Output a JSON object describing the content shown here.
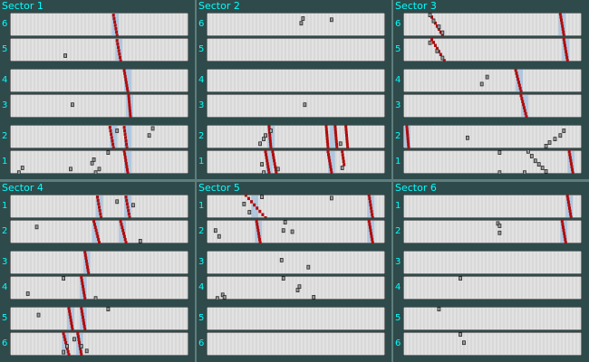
{
  "window": {
    "title": ""
  },
  "colors": {
    "background": "#2f4a4a",
    "label_text": "#00ffff",
    "layer_fill": "#e2e2e2",
    "wire_grid": "#c4c4c4",
    "track_hit": "#b00c0c",
    "road_highlight": "#8ab4de",
    "noise_hit_edge": "#2a2a2a",
    "noise_hit_fill": "#9a9a9a"
  },
  "sectors": [
    {
      "title": "Sector 1",
      "layers": [
        {
          "label": "6",
          "red": [
            [
              0.58,
              0.1,
              0.6,
              0.96
            ]
          ],
          "blue": [
            0.59
          ],
          "black": []
        },
        {
          "label": "5",
          "red": [
            [
              0.6,
              0.1,
              0.62,
              0.96
            ]
          ],
          "blue": [
            0.61
          ],
          "black": [
            [
              0.31,
              0.75
            ]
          ]
        },
        {
          "label": "4",
          "red": [
            [
              0.64,
              0.06,
              0.66,
              0.96
            ]
          ],
          "blue": [
            0.66
          ],
          "black": []
        },
        {
          "label": "3",
          "red": [
            [
              0.665,
              0.06,
              0.675,
              0.96
            ]
          ],
          "blue": [
            0.67
          ],
          "black": [
            [
              0.35,
              0.45
            ]
          ]
        },
        {
          "label": "2",
          "red": [
            [
              0.56,
              0.1,
              0.58,
              0.96
            ],
            [
              0.64,
              0.1,
              0.655,
              0.96
            ]
          ],
          "blue": [
            0.58,
            0.66
          ],
          "black": [
            [
              0.8,
              0.15
            ],
            [
              0.78,
              0.45
            ],
            [
              0.6,
              0.25
            ]
          ]
        },
        {
          "label": "1",
          "red": [
            [
              0.64,
              0.02,
              0.66,
              0.96
            ]
          ],
          "blue": [
            0.66
          ],
          "black": [
            [
              0.07,
              0.75
            ],
            [
              0.05,
              0.95
            ],
            [
              0.47,
              0.4
            ],
            [
              0.46,
              0.55
            ],
            [
              0.5,
              0.8
            ],
            [
              0.48,
              0.95
            ],
            [
              0.55,
              0.1
            ],
            [
              0.34,
              0.8
            ]
          ]
        }
      ]
    },
    {
      "title": "Sector 2",
      "layers": [
        {
          "label": "6",
          "red": [],
          "blue": [],
          "black": [
            [
              0.54,
              0.25
            ],
            [
              0.53,
              0.45
            ],
            [
              0.7,
              0.3
            ]
          ]
        },
        {
          "label": "5",
          "red": [],
          "blue": [],
          "black": []
        },
        {
          "label": "4",
          "red": [],
          "blue": [],
          "black": []
        },
        {
          "label": "3",
          "red": [],
          "blue": [],
          "black": [
            [
              0.55,
              0.45
            ]
          ]
        },
        {
          "label": "2",
          "red": [
            [
              0.35,
              0.05,
              0.36,
              0.95
            ],
            [
              0.67,
              0.05,
              0.68,
              0.95
            ],
            [
              0.72,
              0.05,
              0.73,
              0.95
            ],
            [
              0.78,
              0.05,
              0.79,
              0.95
            ]
          ],
          "blue": [
            0.36,
            0.71
          ],
          "black": [
            [
              0.3,
              0.8
            ],
            [
              0.32,
              0.6
            ],
            [
              0.33,
              0.45
            ],
            [
              0.36,
              0.25
            ],
            [
              0.75,
              0.8
            ]
          ]
        },
        {
          "label": "1",
          "red": [
            [
              0.33,
              0.05,
              0.35,
              0.95
            ],
            [
              0.37,
              0.05,
              0.39,
              0.95
            ],
            [
              0.68,
              0.05,
              0.7,
              0.95
            ],
            [
              0.76,
              0.05,
              0.77,
              0.6
            ]
          ],
          "blue": [
            0.35,
            0.7
          ],
          "black": [
            [
              0.31,
              0.6
            ],
            [
              0.32,
              0.95
            ],
            [
              0.4,
              0.8
            ],
            [
              0.76,
              0.75
            ]
          ]
        }
      ]
    },
    {
      "title": "Sector 3",
      "layers": [
        {
          "label": "6",
          "red": [
            [
              0.15,
              0.05,
              0.22,
              0.95
            ],
            [
              0.88,
              0.05,
              0.9,
              0.95
            ]
          ],
          "blue": [
            0.89
          ],
          "black": [
            [
              0.15,
              0.1
            ],
            [
              0.17,
              0.35
            ],
            [
              0.2,
              0.6
            ],
            [
              0.22,
              0.85
            ]
          ]
        },
        {
          "label": "5",
          "red": [
            [
              0.16,
              0.05,
              0.23,
              0.95
            ],
            [
              0.9,
              0.05,
              0.92,
              0.95
            ]
          ],
          "blue": [
            0.91
          ],
          "black": [
            [
              0.15,
              0.2
            ],
            [
              0.19,
              0.55
            ],
            [
              0.22,
              0.85
            ]
          ]
        },
        {
          "label": "4",
          "red": [
            [
              0.63,
              0.05,
              0.66,
              0.95
            ]
          ],
          "blue": [
            0.65
          ],
          "black": [
            [
              0.47,
              0.35
            ],
            [
              0.44,
              0.65
            ]
          ]
        },
        {
          "label": "3",
          "red": [
            [
              0.66,
              0.05,
              0.69,
              0.95
            ]
          ],
          "blue": [
            0.68
          ],
          "black": []
        },
        {
          "label": "2",
          "red": [
            [
              0.02,
              0.05,
              0.03,
              0.95
            ]
          ],
          "blue": [
            0.02
          ],
          "black": [
            [
              0.9,
              0.25
            ],
            [
              0.88,
              0.45
            ],
            [
              0.85,
              0.6
            ],
            [
              0.82,
              0.75
            ],
            [
              0.8,
              0.9
            ],
            [
              0.36,
              0.55
            ]
          ]
        },
        {
          "label": "1",
          "red": [
            [
              0.93,
              0.05,
              0.95,
              0.95
            ]
          ],
          "blue": [
            0.94
          ],
          "black": [
            [
              0.7,
              0.05
            ],
            [
              0.72,
              0.25
            ],
            [
              0.74,
              0.45
            ],
            [
              0.76,
              0.6
            ],
            [
              0.78,
              0.75
            ],
            [
              0.8,
              0.9
            ],
            [
              0.68,
              0.95
            ],
            [
              0.54,
              0.95
            ],
            [
              0.54,
              0.1
            ]
          ]
        }
      ]
    },
    {
      "title": "Sector 4",
      "layers": [
        {
          "label": "1",
          "red": [
            [
              0.49,
              0.1,
              0.51,
              0.96
            ],
            [
              0.65,
              0.1,
              0.67,
              0.96
            ]
          ],
          "blue": [
            0.5,
            0.66
          ],
          "black": [
            [
              0.6,
              0.3
            ],
            [
              0.69,
              0.45
            ]
          ]
        },
        {
          "label": "2",
          "red": [
            [
              0.47,
              0.05,
              0.5,
              0.95
            ],
            [
              0.62,
              0.05,
              0.65,
              0.95
            ]
          ],
          "blue": [
            0.48,
            0.63
          ],
          "black": [
            [
              0.15,
              0.3
            ],
            [
              0.73,
              0.9
            ]
          ]
        },
        {
          "label": "3",
          "red": [
            [
              0.42,
              0.05,
              0.44,
              0.95
            ]
          ],
          "blue": [
            0.43
          ],
          "black": []
        },
        {
          "label": "4",
          "red": [
            [
              0.4,
              0.05,
              0.42,
              0.95
            ]
          ],
          "blue": [
            0.41
          ],
          "black": [
            [
              0.3,
              0.1
            ],
            [
              0.1,
              0.75
            ],
            [
              0.48,
              0.95
            ]
          ]
        },
        {
          "label": "5",
          "red": [
            [
              0.33,
              0.05,
              0.35,
              0.95
            ],
            [
              0.4,
              0.05,
              0.42,
              0.95
            ]
          ],
          "blue": [
            0.34,
            0.41
          ],
          "black": [
            [
              0.55,
              0.1
            ],
            [
              0.16,
              0.35
            ]
          ]
        },
        {
          "label": "6",
          "red": [
            [
              0.3,
              0.05,
              0.33,
              0.95
            ],
            [
              0.38,
              0.05,
              0.4,
              0.95
            ]
          ],
          "blue": [
            0.31,
            0.39
          ],
          "black": [
            [
              0.36,
              0.3
            ],
            [
              0.32,
              0.6
            ],
            [
              0.4,
              0.6
            ],
            [
              0.43,
              0.8
            ],
            [
              0.3,
              0.85
            ]
          ]
        }
      ]
    },
    {
      "title": "Sector 5",
      "layers": [
        {
          "label": "1",
          "red": [
            [
              0.22,
              0.02,
              0.33,
              0.98
            ],
            [
              0.91,
              0.02,
              0.93,
              0.98
            ]
          ],
          "blue": [
            0.27,
            0.92
          ],
          "black": [
            [
              0.21,
              0.4
            ],
            [
              0.24,
              0.75
            ],
            [
              0.31,
              0.1
            ],
            [
              0.7,
              0.15
            ]
          ]
        },
        {
          "label": "2",
          "red": [
            [
              0.28,
              0.05,
              0.3,
              0.95
            ],
            [
              0.91,
              0.05,
              0.93,
              0.95
            ]
          ],
          "blue": [
            0.29,
            0.92
          ],
          "black": [
            [
              0.44,
              0.1
            ],
            [
              0.43,
              0.45
            ],
            [
              0.48,
              0.5
            ],
            [
              0.05,
              0.45
            ],
            [
              0.07,
              0.7
            ]
          ]
        },
        {
          "label": "3",
          "red": [],
          "blue": [],
          "black": [
            [
              0.42,
              0.4
            ],
            [
              0.57,
              0.7
            ]
          ]
        },
        {
          "label": "4",
          "red": [],
          "blue": [],
          "black": [
            [
              0.43,
              0.1
            ],
            [
              0.52,
              0.45
            ],
            [
              0.51,
              0.6
            ],
            [
              0.09,
              0.8
            ],
            [
              0.1,
              0.9
            ],
            [
              0.06,
              0.95
            ],
            [
              0.6,
              0.9
            ]
          ]
        },
        {
          "label": "5",
          "red": [],
          "blue": [],
          "black": []
        },
        {
          "label": "6",
          "red": [],
          "blue": [],
          "black": []
        }
      ]
    },
    {
      "title": "Sector 6",
      "layers": [
        {
          "label": "1",
          "red": [
            [
              0.92,
              0.05,
              0.94,
              0.95
            ]
          ],
          "blue": [
            0.93
          ],
          "black": []
        },
        {
          "label": "2",
          "red": [
            [
              0.89,
              0.05,
              0.91,
              0.95
            ]
          ],
          "blue": [
            0.9
          ],
          "black": [
            [
              0.53,
              0.15
            ],
            [
              0.54,
              0.25
            ],
            [
              0.54,
              0.55
            ]
          ]
        },
        {
          "label": "3",
          "red": [],
          "blue": [],
          "black": []
        },
        {
          "label": "4",
          "red": [],
          "blue": [],
          "black": [
            [
              0.32,
              0.1
            ]
          ]
        },
        {
          "label": "5",
          "red": [],
          "blue": [],
          "black": [
            [
              0.2,
              0.1
            ]
          ]
        },
        {
          "label": "6",
          "red": [],
          "blue": [],
          "black": [
            [
              0.32,
              0.1
            ],
            [
              0.34,
              0.45
            ]
          ]
        }
      ]
    }
  ]
}
